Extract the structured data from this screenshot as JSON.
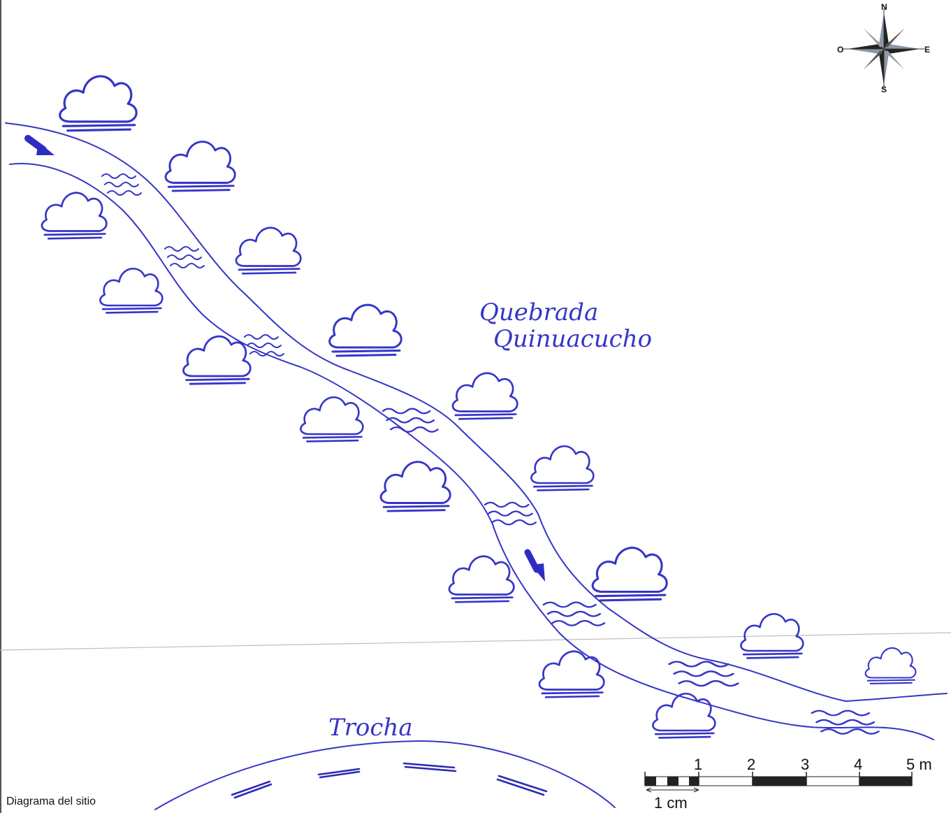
{
  "labels": {
    "stream_line1": "Quebrada",
    "stream_line2": "Quinuacucho",
    "trail": "Trocha",
    "caption": "Diagrama del sitio"
  },
  "compass": {
    "north": "N",
    "south": "S",
    "east": "E",
    "west": "O"
  },
  "scale_bar": {
    "ticks": [
      "1",
      "2",
      "3",
      "4",
      "5 m"
    ],
    "sub_label": "1 cm"
  },
  "colors": {
    "ink": "#3535c8",
    "bar_dark": "#222222"
  },
  "icons": {
    "shrub": "shrub-icon",
    "water": "water-waves-icon",
    "flow_arrow": "flow-arrow-icon",
    "compass": "compass-rose-icon"
  }
}
